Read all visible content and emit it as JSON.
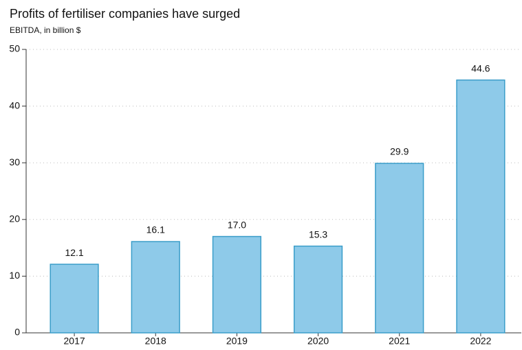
{
  "chart_data": {
    "type": "bar",
    "title": "Profits of fertiliser companies have surged",
    "subtitle": "EBITDA, in billion $",
    "categories": [
      "2017",
      "2018",
      "2019",
      "2020",
      "2021",
      "2022"
    ],
    "values": [
      12.1,
      16.1,
      17.0,
      15.3,
      29.9,
      44.6
    ],
    "value_labels": [
      "12.1",
      "16.1",
      "17.0",
      "15.3",
      "29.9",
      "44.6"
    ],
    "color": "#8ecae9",
    "edge_color": "#3a9dc9",
    "ylim": [
      0,
      50
    ],
    "yticks": [
      0,
      10,
      20,
      30,
      40,
      50
    ],
    "grid": true
  }
}
